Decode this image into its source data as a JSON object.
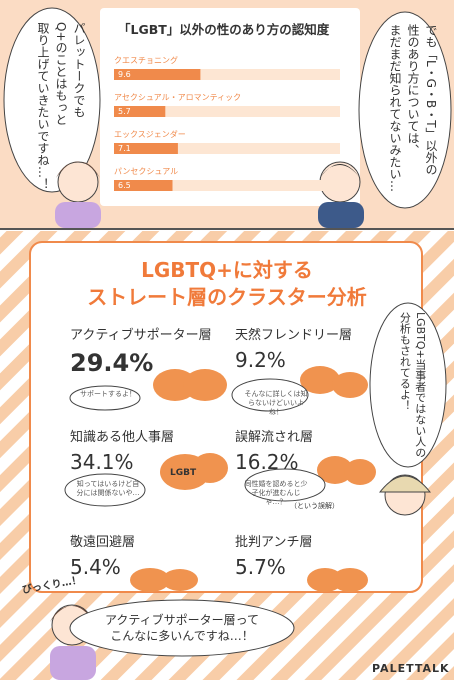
{
  "top_panel": {
    "chart_data": {
      "type": "bar",
      "title": "「LGBT」以外の性のあり方の認知度",
      "categories": [
        "クエスチョニング",
        "アセクシュアル・アロマンティック",
        "エックスジェンダー",
        "パンセクシュアル"
      ],
      "values": [
        9.6,
        5.7,
        7.1,
        6.5
      ],
      "color": "#f08a4b"
    },
    "left_bubble": [
      "パレットークでも",
      "Q+のことはもっと",
      "取り上げていきたいですね…！"
    ],
    "right_bubble": [
      "でも「L・G・B・T」以外の",
      "性のあり方については、",
      "まだまだ知られてないみたい…"
    ]
  },
  "bottom_panel": {
    "title": [
      "LGBTQ+に対する",
      "ストレート層のクラスター分析"
    ],
    "clusters": [
      {
        "name": "アクティブサポーター層",
        "share": "29.4%",
        "bubble": "サポートするよ！"
      },
      {
        "name": "天然フレンドリー層",
        "share": "9.2%",
        "bubble": "そんなに詳しくは知らないけどいいよね！"
      },
      {
        "name": "知識ある他人事層",
        "share": "34.1%",
        "bubble": "知ってはいるけど自分には関係ないや…",
        "sign": "LGBT"
      },
      {
        "name": "誤解流され層",
        "share": "16.2%",
        "bubble": "同性婚を認めると少子化が進むんじゃ…？",
        "note": "（という誤解）"
      },
      {
        "name": "敬遠回避層",
        "share": "5.4%"
      },
      {
        "name": "批判アンチ層",
        "share": "5.7%"
      }
    ],
    "right_bubble": "LGBTQ+当事者ではない人の分析もされてるよ！",
    "exclamation": "びっくり…！",
    "bottom_bubble": [
      "アクティブサポーター層って",
      "こんなに多いんですね…！"
    ],
    "brand": "PALETTALK"
  }
}
